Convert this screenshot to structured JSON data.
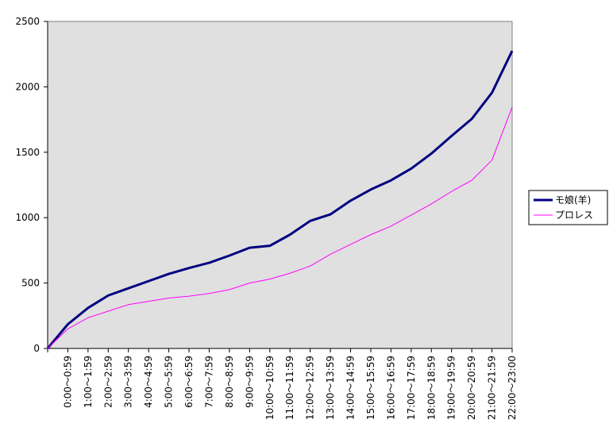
{
  "chart_data": {
    "type": "line",
    "categories": [
      null,
      "0:00～0:59",
      "1:00～1:59",
      "2:00～2:59",
      "3:00～3:59",
      "4:00～4:59",
      "5:00～5:59",
      "6:00～6:59",
      "7:00～7:59",
      "8:00～8:59",
      "9:00～9:59",
      "10:00～10:59",
      "11:00～11:59",
      "12:00～12:59",
      "13:00～13:59",
      "14:00～14:59",
      "15:00～15:59",
      "16:00～16:59",
      "17:00～17:59",
      "18:00～18:59",
      "19:00～19:59",
      "20:00～20:59",
      "21:00～21:59",
      "22:00～23:00"
    ],
    "series": [
      {
        "name": "モ娘(羊)",
        "color": "#000080",
        "values": [
          0,
          185,
          310,
          405,
          460,
          515,
          570,
          615,
          655,
          710,
          770,
          785,
          870,
          975,
          1025,
          1130,
          1215,
          1285,
          1375,
          1490,
          1625,
          1755,
          1955,
          2275
        ]
      },
      {
        "name": "プロレス",
        "color": "#ff00ff",
        "values": [
          0,
          150,
          235,
          285,
          335,
          360,
          385,
          400,
          420,
          450,
          500,
          530,
          575,
          630,
          720,
          795,
          870,
          935,
          1020,
          1105,
          1200,
          1285,
          1440,
          1845
        ]
      }
    ],
    "ylim": [
      0,
      2500
    ],
    "yticks": [
      0,
      500,
      1000,
      1500,
      2000,
      2500
    ],
    "grid": false,
    "legend": "right"
  }
}
